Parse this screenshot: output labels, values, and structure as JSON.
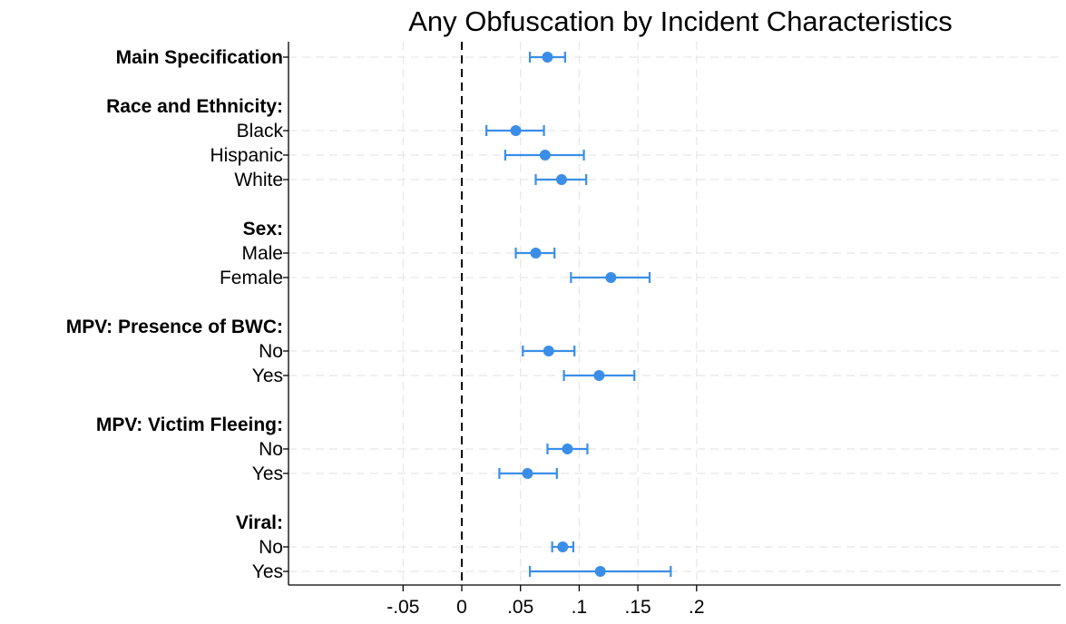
{
  "chart_data": {
    "type": "scatter",
    "subtype": "coefficient-plot-with-confidence-intervals",
    "title": "Any Obfuscation by Incident Characteristics",
    "xlabel": "",
    "ylabel": "",
    "xlim": [
      -0.05,
      0.2
    ],
    "x_ticks": [
      {
        "value": -0.05,
        "label": "-.05"
      },
      {
        "value": 0,
        "label": "0"
      },
      {
        "value": 0.05,
        "label": ".05"
      },
      {
        "value": 0.1,
        "label": ".1"
      },
      {
        "value": 0.15,
        "label": ".15"
      },
      {
        "value": 0.2,
        "label": ".2"
      }
    ],
    "reference_line": 0,
    "grid": true,
    "colors": {
      "marker": "#3b8ee8",
      "ci": "#3b8ee8"
    },
    "rows": [
      {
        "label": "Main Specification",
        "is_group": true,
        "estimate": 0.073,
        "ci_low": 0.058,
        "ci_high": 0.088
      },
      {
        "label": "Race and Ethnicity:",
        "is_group": true
      },
      {
        "label": "Black",
        "is_group": false,
        "estimate": 0.046,
        "ci_low": 0.021,
        "ci_high": 0.07
      },
      {
        "label": "Hispanic",
        "is_group": false,
        "estimate": 0.071,
        "ci_low": 0.037,
        "ci_high": 0.104
      },
      {
        "label": "White",
        "is_group": false,
        "estimate": 0.085,
        "ci_low": 0.063,
        "ci_high": 0.106
      },
      {
        "label": "Sex:",
        "is_group": true
      },
      {
        "label": "Male",
        "is_group": false,
        "estimate": 0.063,
        "ci_low": 0.046,
        "ci_high": 0.079
      },
      {
        "label": "Female",
        "is_group": false,
        "estimate": 0.127,
        "ci_low": 0.093,
        "ci_high": 0.16
      },
      {
        "label": "MPV: Presence of BWC:",
        "is_group": true
      },
      {
        "label": "No",
        "is_group": false,
        "estimate": 0.074,
        "ci_low": 0.052,
        "ci_high": 0.096
      },
      {
        "label": "Yes",
        "is_group": false,
        "estimate": 0.117,
        "ci_low": 0.087,
        "ci_high": 0.147
      },
      {
        "label": "MPV: Victim Fleeing:",
        "is_group": true
      },
      {
        "label": "No",
        "is_group": false,
        "estimate": 0.09,
        "ci_low": 0.073,
        "ci_high": 0.107
      },
      {
        "label": "Yes",
        "is_group": false,
        "estimate": 0.056,
        "ci_low": 0.032,
        "ci_high": 0.081
      },
      {
        "label": "Viral:",
        "is_group": true
      },
      {
        "label": "No",
        "is_group": false,
        "estimate": 0.086,
        "ci_low": 0.077,
        "ci_high": 0.095
      },
      {
        "label": "Yes",
        "is_group": false,
        "estimate": 0.118,
        "ci_low": 0.058,
        "ci_high": 0.178
      }
    ]
  }
}
